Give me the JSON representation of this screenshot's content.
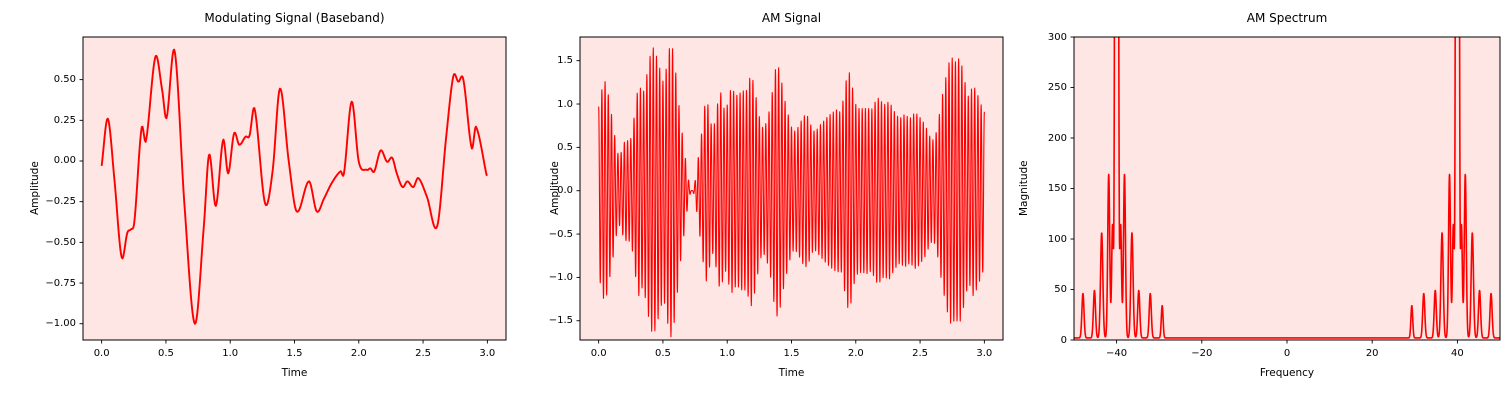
{
  "figure": {
    "background": "#ffffff",
    "axes_background": "#fde6e3",
    "line_color": "#ff0000",
    "spine_color": "#000000",
    "text_color": "#000000"
  },
  "chart_data": [
    {
      "type": "line",
      "title": "Modulating Signal (Baseband)",
      "xlabel": "Time",
      "ylabel": "Amplitude",
      "xlim": [
        -0.145,
        3.145
      ],
      "ylim": [
        -1.1,
        0.762
      ],
      "xticks": [
        0.0,
        0.5,
        1.0,
        1.5,
        2.0,
        2.5,
        3.0
      ],
      "xtick_labels": [
        "0.0",
        "0.5",
        "1.0",
        "1.5",
        "2.0",
        "2.5",
        "3.0"
      ],
      "yticks": [
        0.5,
        0.25,
        0.0,
        -0.25,
        -0.5,
        -0.75,
        -1.0
      ],
      "ytick_labels": [
        "0.50",
        "0.25",
        "0.00",
        "−0.25",
        "−0.50",
        "−0.75",
        "−1.00"
      ],
      "grid": false,
      "legend": null,
      "line_width": 1.9,
      "points": [
        [
          0.0,
          -0.03
        ],
        [
          0.048,
          0.26
        ],
        [
          0.1,
          -0.12
        ],
        [
          0.155,
          -0.59
        ],
        [
          0.2,
          -0.44
        ],
        [
          0.228,
          -0.42
        ],
        [
          0.255,
          -0.37
        ],
        [
          0.31,
          0.2
        ],
        [
          0.345,
          0.125
        ],
        [
          0.418,
          0.64
        ],
        [
          0.47,
          0.44
        ],
        [
          0.505,
          0.265
        ],
        [
          0.568,
          0.675
        ],
        [
          0.645,
          -0.28
        ],
        [
          0.725,
          -1.0
        ],
        [
          0.795,
          -0.4
        ],
        [
          0.836,
          0.04
        ],
        [
          0.888,
          -0.276
        ],
        [
          0.945,
          0.13
        ],
        [
          0.984,
          -0.076
        ],
        [
          1.03,
          0.17
        ],
        [
          1.07,
          0.1
        ],
        [
          1.12,
          0.15
        ],
        [
          1.15,
          0.155
        ],
        [
          1.19,
          0.32
        ],
        [
          1.271,
          -0.26
        ],
        [
          1.33,
          -0.06
        ],
        [
          1.387,
          0.445
        ],
        [
          1.455,
          0.0
        ],
        [
          1.517,
          -0.31
        ],
        [
          1.613,
          -0.125
        ],
        [
          1.673,
          -0.31
        ],
        [
          1.73,
          -0.23
        ],
        [
          1.79,
          -0.135
        ],
        [
          1.858,
          -0.063
        ],
        [
          1.885,
          -0.075
        ],
        [
          1.945,
          0.365
        ],
        [
          2.0,
          -0.005
        ],
        [
          2.065,
          -0.055
        ],
        [
          2.09,
          -0.045
        ],
        [
          2.12,
          -0.065
        ],
        [
          2.17,
          0.065
        ],
        [
          2.22,
          -0.005
        ],
        [
          2.26,
          0.02
        ],
        [
          2.295,
          -0.075
        ],
        [
          2.34,
          -0.16
        ],
        [
          2.378,
          -0.125
        ],
        [
          2.424,
          -0.16
        ],
        [
          2.463,
          -0.105
        ],
        [
          2.53,
          -0.22
        ],
        [
          2.61,
          -0.4
        ],
        [
          2.68,
          0.15
        ],
        [
          2.735,
          0.52
        ],
        [
          2.774,
          0.487
        ],
        [
          2.813,
          0.502
        ],
        [
          2.878,
          0.08
        ],
        [
          2.912,
          0.21
        ],
        [
          2.995,
          -0.09
        ]
      ]
    },
    {
      "type": "line",
      "title": "AM Signal",
      "xlabel": "Time",
      "ylabel": "Amplitude",
      "xlim": [
        -0.145,
        3.145
      ],
      "ylim": [
        -1.722,
        1.773
      ],
      "xticks": [
        0.0,
        0.5,
        1.0,
        1.5,
        2.0,
        2.5,
        3.0
      ],
      "xtick_labels": [
        "0.0",
        "0.5",
        "1.0",
        "1.5",
        "2.0",
        "2.5",
        "3.0"
      ],
      "yticks": [
        1.5,
        1.0,
        0.5,
        0.0,
        -0.5,
        -1.0,
        -1.5
      ],
      "ytick_labels": [
        "1.5",
        "1.0",
        "0.5",
        "0.0",
        "−0.5",
        "−1.0",
        "−1.5"
      ],
      "grid": false,
      "legend": null,
      "line_width": 1.1,
      "carrier_freq_hz": 40,
      "envelope": "1 + baseband(t)",
      "time_range": [
        0,
        3
      ]
    },
    {
      "type": "line",
      "title": "AM Spectrum",
      "xlabel": "Frequency",
      "ylabel": "Magnitude",
      "xlim": [
        -50,
        50
      ],
      "ylim": [
        0,
        300
      ],
      "xticks": [
        -40,
        -20,
        0,
        20,
        40
      ],
      "xtick_labels": [
        "−40",
        "−20",
        "0",
        "20",
        "40"
      ],
      "yticks": [
        0,
        50,
        100,
        150,
        200,
        250,
        300
      ],
      "ytick_labels": [
        "0",
        "50",
        "100",
        "150",
        "200",
        "250",
        "300"
      ],
      "grid": false,
      "legend": null,
      "line_width": 1.6,
      "baseline_magnitude": 2,
      "carrier_frequencies": [
        -40,
        40
      ],
      "carrier_peak_clipped_at": 300,
      "peaks_fhw": [
        [
          -50.7,
          32,
          0.3
        ],
        [
          -47.9,
          44,
          0.35
        ],
        [
          -45.2,
          47,
          0.35
        ],
        [
          -43.5,
          104,
          0.38
        ],
        [
          -41.85,
          162,
          0.33
        ],
        [
          -40.95,
          112,
          0.3
        ],
        [
          -40.25,
          900,
          0.25
        ],
        [
          -39.75,
          900,
          0.25
        ],
        [
          -39.05,
          112,
          0.3
        ],
        [
          -38.15,
          162,
          0.33
        ],
        [
          -36.4,
          104,
          0.38
        ],
        [
          -34.8,
          47,
          0.35
        ],
        [
          -32.1,
          44,
          0.35
        ],
        [
          -29.3,
          32,
          0.3
        ],
        [
          29.3,
          32,
          0.3
        ],
        [
          32.1,
          44,
          0.35
        ],
        [
          34.8,
          47,
          0.35
        ],
        [
          36.4,
          104,
          0.38
        ],
        [
          38.15,
          162,
          0.33
        ],
        [
          39.05,
          112,
          0.3
        ],
        [
          39.75,
          900,
          0.25
        ],
        [
          40.25,
          900,
          0.25
        ],
        [
          40.95,
          112,
          0.3
        ],
        [
          41.85,
          162,
          0.33
        ],
        [
          43.5,
          104,
          0.38
        ],
        [
          45.2,
          47,
          0.35
        ],
        [
          47.9,
          44,
          0.35
        ],
        [
          50.7,
          32,
          0.3
        ]
      ]
    }
  ]
}
